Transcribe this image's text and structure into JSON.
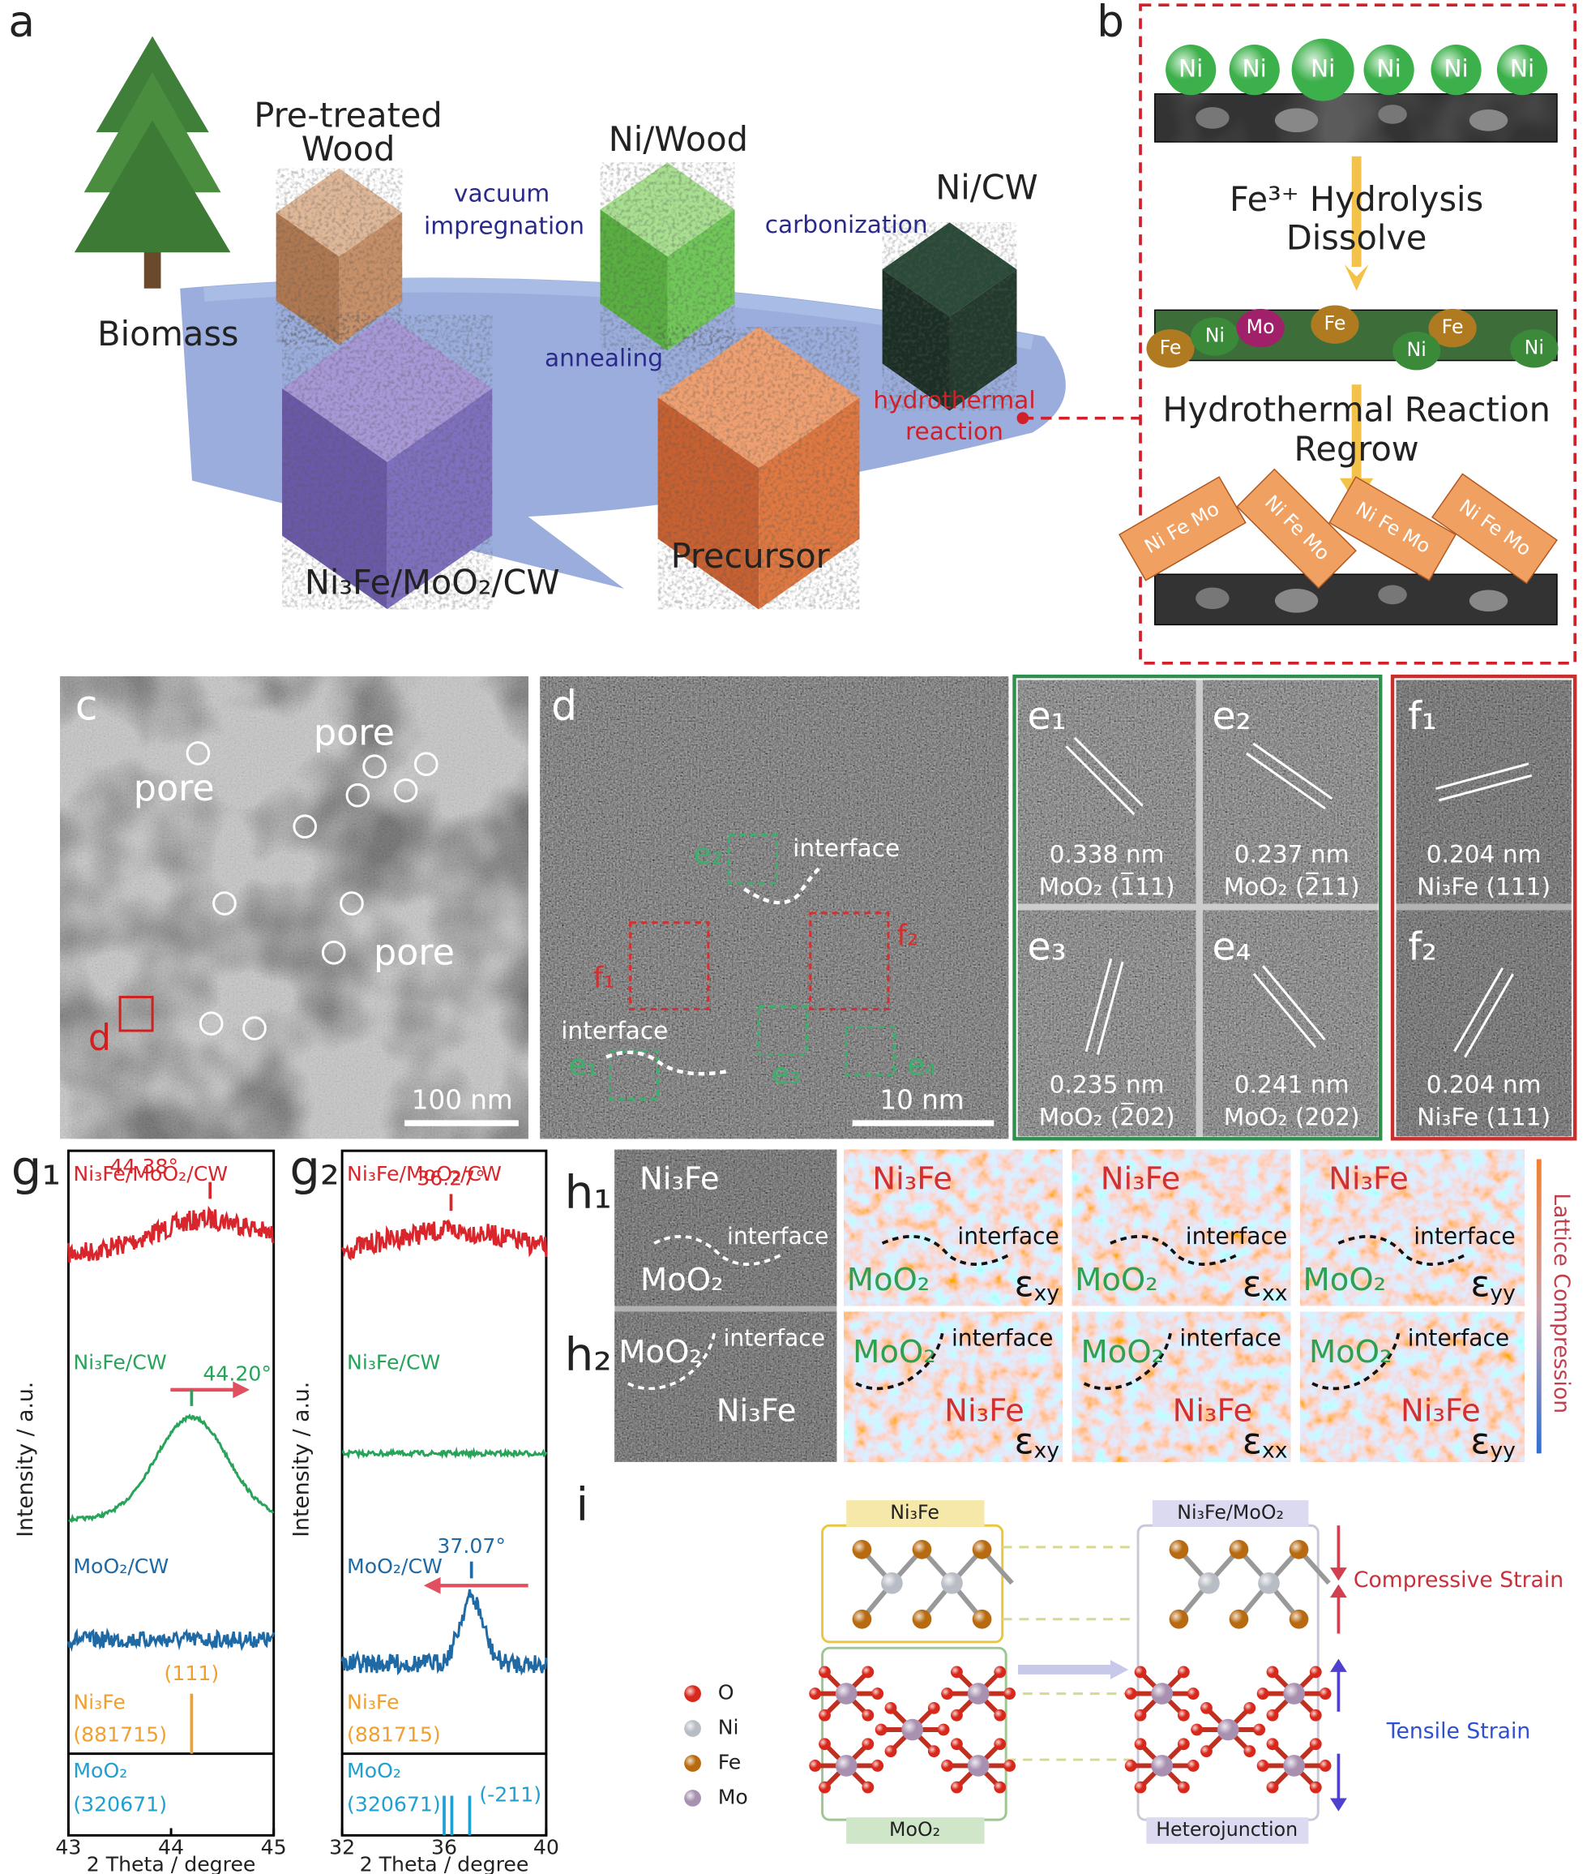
{
  "a": {
    "label": "a",
    "biomass": "Biomass",
    "pretreated": [
      "Pre-treated",
      "Wood"
    ],
    "vacuum": [
      "vacuum",
      "impregnation"
    ],
    "ni_wood": "Ni/Wood",
    "carbonization": "carbonization",
    "ni_cw": "Ni/CW",
    "annealing": "annealing",
    "hydrothermal": [
      "hydrothermal",
      "reaction"
    ],
    "precursor": "Precursor",
    "product": "Ni₃Fe/MoO₂/CW"
  },
  "b": {
    "label": "b",
    "ni": [
      "Ni",
      "Ni",
      "Ni",
      "Ni",
      "Ni",
      "Ni"
    ],
    "step1": [
      "Fe³⁺ Hydrolysis",
      "Dissolve"
    ],
    "mixed": [
      "Fe",
      "Ni",
      "Mo",
      "Fe",
      "Fe",
      "Ni",
      "Ni"
    ],
    "step2": [
      "Hydrothermal Reaction",
      "Regrow"
    ],
    "crystals": [
      "Ni Fe Mo",
      "Ni Fe Mo",
      "Ni Fe Mo",
      "Ni Fe Mo"
    ]
  },
  "c": {
    "label": "c",
    "pores": [
      "pore",
      "pore",
      "pore"
    ],
    "box": "d",
    "scale": "100 nm"
  },
  "d": {
    "label": "d",
    "interfaces": [
      "interface",
      "interface"
    ],
    "boxes": [
      "e₂",
      "f₁",
      "f₂",
      "e₁",
      "e₃",
      "e₄"
    ],
    "scale": "10 nm"
  },
  "e": [
    {
      "label": "e₁",
      "spacing": "0.338 nm",
      "plane": "MoO₂ (1̅11)"
    },
    {
      "label": "e₂",
      "spacing": "0.237 nm",
      "plane": "MoO₂ (2̅11)"
    },
    {
      "label": "e₃",
      "spacing": "0.235 nm",
      "plane": "MoO₂ (2̅02)"
    },
    {
      "label": "e₄",
      "spacing": "0.241 nm",
      "plane": "MoO₂ (202)"
    }
  ],
  "f": [
    {
      "label": "f₁",
      "spacing": "0.204 nm",
      "plane": "Ni₃Fe (111)"
    },
    {
      "label": "f₂",
      "spacing": "0.204 nm",
      "plane": "Ni₃Fe (111)"
    }
  ],
  "g": [
    {
      "label": "g₁",
      "y_label": "Intensity / a.u.",
      "x_label": "2 Theta / degree",
      "xlim": [
        43,
        45
      ],
      "xticks": [
        43,
        44,
        45
      ],
      "traces": [
        {
          "name": "Ni₃Fe/MoO₂/CW",
          "color": "#d9262c",
          "peak": {
            "value": 44.38,
            "label": "44.38°"
          }
        },
        {
          "name": "Ni₃Fe/CW",
          "color": "#27a35a",
          "peak": {
            "value": 44.2,
            "label": "44.20°"
          }
        },
        {
          "name": "MoO₂/CW",
          "color": "#1f6aa5"
        }
      ],
      "refs": [
        {
          "name": "Ni₃Fe",
          "code": "(881715)",
          "color": "#f0a030",
          "lines": [
            {
              "value": 44.2,
              "label": "(111)"
            }
          ]
        },
        {
          "name": "MoO₂",
          "code": "(320671)",
          "color": "#1fa0d0",
          "lines": []
        }
      ]
    },
    {
      "label": "g₂",
      "y_label": "Intensity / a.u.",
      "x_label": "2 Theta / degree",
      "xlim": [
        32,
        40
      ],
      "xticks": [
        32,
        36,
        40
      ],
      "traces": [
        {
          "name": "Ni₃Fe/MoO₂/CW",
          "color": "#d9262c",
          "peak": {
            "value": 36.27,
            "label": "36.27°"
          }
        },
        {
          "name": "Ni₃Fe/CW",
          "color": "#27a35a"
        },
        {
          "name": "MoO₂/CW",
          "color": "#1f6aa5",
          "peak": {
            "value": 37.07,
            "label": "37.07°"
          }
        }
      ],
      "refs": [
        {
          "name": "Ni₃Fe",
          "code": "(881715)",
          "color": "#f0a030",
          "lines": []
        },
        {
          "name": "MoO₂",
          "code": "(320671)",
          "color": "#1fa0d0",
          "lines": [
            {
              "value": 36.0
            },
            {
              "value": 36.3
            },
            {
              "value": 37.0,
              "label": "(-211)"
            }
          ]
        }
      ]
    }
  ],
  "h": {
    "rows": [
      {
        "label": "h₁",
        "hr": [
          "Ni₃Fe",
          "interface",
          "MoO₂"
        ],
        "maps": [
          {
            "first": "Ni₃Fe",
            "interface": "interface",
            "second": "MoO₂",
            "strain": {
              "symbol": "ε",
              "sub": "xy"
            }
          },
          {
            "first": "Ni₃Fe",
            "interface": "interface",
            "second": "MoO₂",
            "strain": {
              "symbol": "ε",
              "sub": "xx"
            }
          },
          {
            "first": "Ni₃Fe",
            "interface": "interface",
            "second": "MoO₂",
            "strain": {
              "symbol": "ε",
              "sub": "yy"
            }
          }
        ]
      },
      {
        "label": "h₂",
        "hr": [
          "MoO₂",
          "interface",
          "Ni₃Fe"
        ],
        "maps": [
          {
            "first": "MoO₂",
            "interface": "interface",
            "second": "Ni₃Fe",
            "strain": {
              "symbol": "ε",
              "sub": "xy"
            }
          },
          {
            "first": "MoO₂",
            "interface": "interface",
            "second": "Ni₃Fe",
            "strain": {
              "symbol": "ε",
              "sub": "xx"
            }
          },
          {
            "first": "MoO₂",
            "interface": "interface",
            "second": "Ni₃Fe",
            "strain": {
              "symbol": "ε",
              "sub": "yy"
            }
          }
        ]
      }
    ],
    "colorbar": "Lattice Compression"
  },
  "i": {
    "label": "i",
    "top_box": "Ni₃Fe",
    "bottom_box": "MoO₂",
    "right_box": "Ni₃Fe/MoO₂",
    "right_caption": "Heterojunction",
    "compressive": "Compressive Strain",
    "tensile": "Tensile Strain",
    "legend": [
      {
        "name": "O",
        "color": "#d8281c"
      },
      {
        "name": "Ni",
        "color": "#b8bcc4"
      },
      {
        "name": "Fe",
        "color": "#b86a10"
      },
      {
        "name": "Mo",
        "color": "#a890b0"
      }
    ]
  }
}
